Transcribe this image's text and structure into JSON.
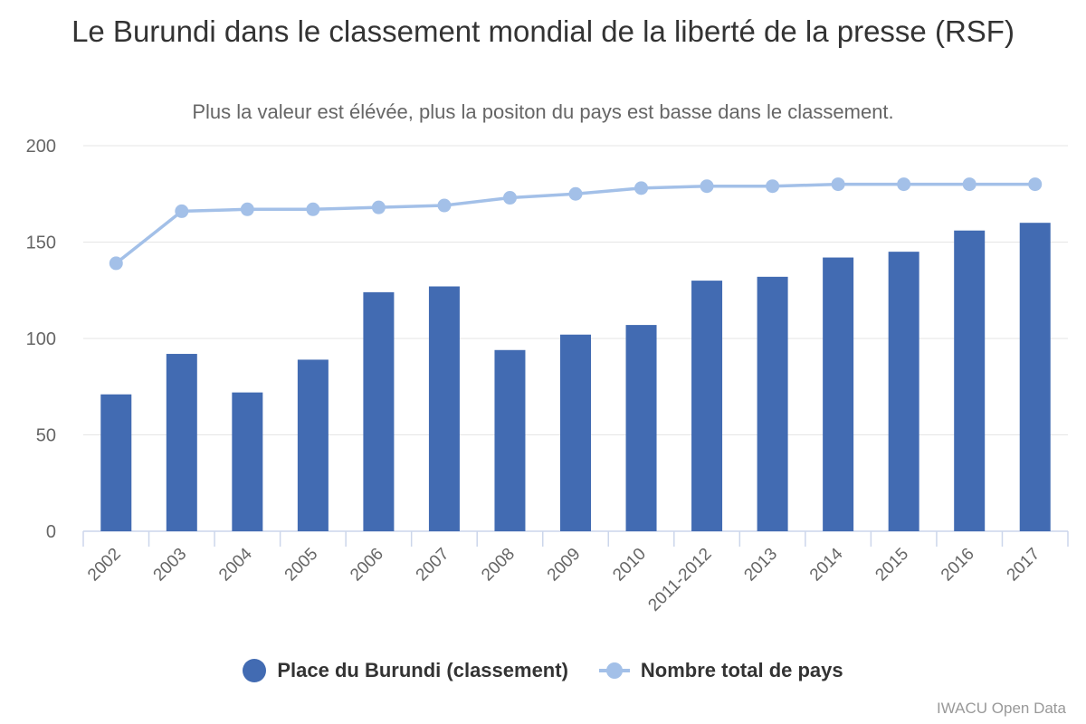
{
  "chart_data": {
    "type": "bar",
    "title": "Le Burundi dans le classement mondial de la liberté de la presse (RSF)",
    "subtitle": "Plus la valeur est élévée, plus la positon du pays est basse dans le classement.",
    "categories": [
      "2002",
      "2003",
      "2004",
      "2005",
      "2006",
      "2007",
      "2008",
      "2009",
      "2010",
      "2011-2012",
      "2013",
      "2014",
      "2015",
      "2016",
      "2017"
    ],
    "series": [
      {
        "name": "Place du Burundi (classement)",
        "type": "bar",
        "color": "#426BB2",
        "values": [
          71,
          92,
          72,
          89,
          124,
          127,
          94,
          102,
          107,
          130,
          132,
          142,
          145,
          156,
          160
        ]
      },
      {
        "name": "Nombre total de pays",
        "type": "line",
        "color": "#A3C0E8",
        "values": [
          139,
          166,
          167,
          167,
          168,
          169,
          173,
          175,
          178,
          179,
          179,
          180,
          180,
          180,
          180
        ]
      }
    ],
    "ylim": [
      0,
      200
    ],
    "yticks": [
      0,
      50,
      100,
      150,
      200
    ],
    "grid": true,
    "legend_position": "bottom"
  },
  "credits": "IWACU Open Data"
}
